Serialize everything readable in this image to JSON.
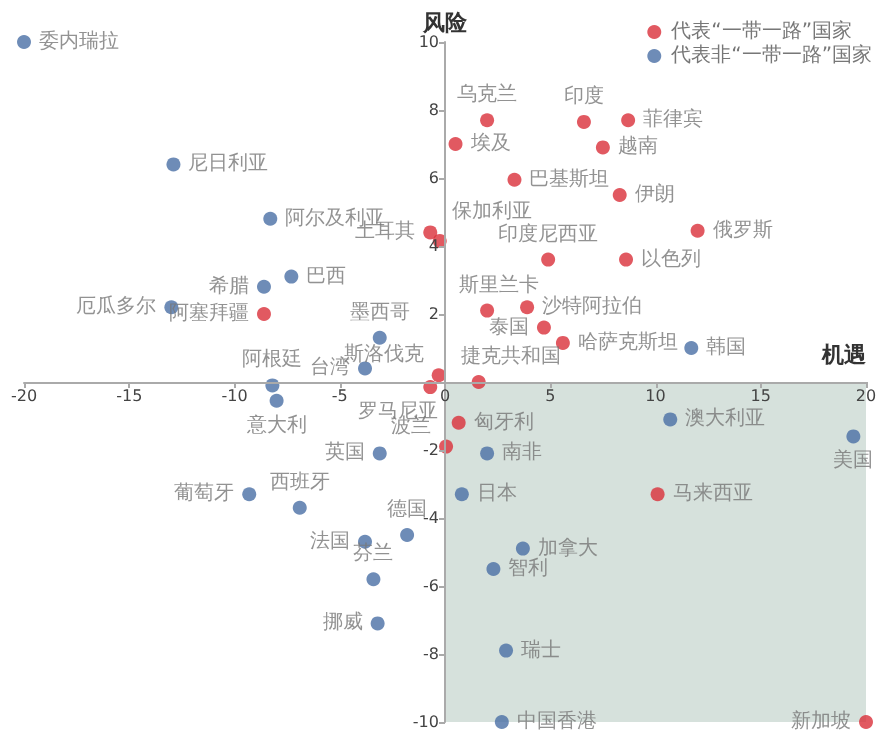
{
  "chart_data": {
    "type": "scatter",
    "xlabel": "机遇",
    "ylabel": "风险",
    "xlim": [
      -20,
      20
    ],
    "ylim": [
      -10,
      10
    ],
    "xticks": [
      -20,
      -15,
      -10,
      -5,
      0,
      5,
      10,
      15,
      20
    ],
    "yticks": [
      -10,
      -8,
      -6,
      -4,
      -2,
      {
        "value": 0,
        "label": null
      },
      2,
      4,
      6,
      8,
      10
    ],
    "grid": false,
    "legend": "top right",
    "marker": "circle",
    "bands": [
      {
        "axis": "x",
        "from": 0,
        "to": 20,
        "color": "#d6e1dc"
      }
    ],
    "series": [
      {
        "name": "代表“一带一路”国家",
        "color": "#d9303a",
        "x": [
          2.0,
          6.6,
          8.7,
          0.5,
          7.5,
          3.3,
          8.3,
          -0.7,
          -0.25,
          12.0,
          4.9,
          8.6,
          2.0,
          3.9,
          4.7,
          5.6,
          -8.6,
          -0.3,
          1.6,
          -0.7,
          0.05,
          0.65,
          10.1,
          20
        ],
        "values": [
          7.7,
          7.65,
          7.7,
          7.0,
          6.9,
          5.95,
          5.5,
          4.4,
          4.15,
          4.45,
          3.6,
          3.6,
          2.1,
          2.2,
          1.6,
          1.15,
          2.0,
          0.2,
          0.0,
          -0.15,
          -1.9,
          -1.2,
          -3.3,
          -10
        ]
      },
      {
        "name": "代表非“一带一路”国家",
        "color": "#4a6fa5",
        "x": [
          -20,
          -12.9,
          -8.3,
          -7.3,
          -8.6,
          -13.0,
          -3.1,
          -3.8,
          -8.2,
          -8.0,
          -3.1,
          -9.3,
          -6.9,
          -1.8,
          -3.8,
          -3.4,
          -3.2,
          11.7,
          10.7,
          19.4,
          2.0,
          0.8,
          3.7,
          2.3,
          2.9,
          2.7
        ],
        "values": [
          10,
          6.4,
          4.8,
          3.1,
          2.8,
          2.2,
          1.3,
          0.4,
          -0.1,
          -0.55,
          -2.1,
          -3.3,
          -3.7,
          -4.5,
          -4.7,
          -5.8,
          -7.1,
          1.0,
          -1.1,
          -1.6,
          -2.1,
          -3.3,
          -4.9,
          -5.5,
          -7.9,
          -10
        ]
      }
    ],
    "annotations": [
      {
        "text": "乌克兰",
        "x": 2.0,
        "y": 7.7
      },
      {
        "text": "印度",
        "x": 6.6,
        "y": 7.65
      },
      {
        "text": "菲律宾",
        "x": 8.7,
        "y": 7.7
      },
      {
        "text": "埃及",
        "x": 0.5,
        "y": 7.0
      },
      {
        "text": "越南",
        "x": 7.5,
        "y": 6.9
      },
      {
        "text": "巴基斯坦",
        "x": 3.3,
        "y": 5.95
      },
      {
        "text": "伊朗",
        "x": 8.3,
        "y": 5.5
      },
      {
        "text": "土耳其",
        "x": -0.7,
        "y": 4.4
      },
      {
        "text": "保加利亚",
        "x": -0.25,
        "y": 4.15
      },
      {
        "text": "俄罗斯",
        "x": 12.0,
        "y": 4.45
      },
      {
        "text": "印度尼西亚",
        "x": 4.9,
        "y": 3.6
      },
      {
        "text": "以色列",
        "x": 8.6,
        "y": 3.6
      },
      {
        "text": "斯里兰卡",
        "x": 2.0,
        "y": 2.1
      },
      {
        "text": "沙特阿拉伯",
        "x": 3.9,
        "y": 2.2
      },
      {
        "text": "泰国",
        "x": 4.7,
        "y": 1.6
      },
      {
        "text": "哈萨克斯坦",
        "x": 5.6,
        "y": 1.15
      },
      {
        "text": "阿塞拜疆",
        "x": -8.6,
        "y": 2.0
      },
      {
        "text": "斯洛伐克",
        "x": -0.3,
        "y": 0.2
      },
      {
        "text": "捷克共和国",
        "x": 1.6,
        "y": 0.0
      },
      {
        "text": "罗马尼亚",
        "x": -0.7,
        "y": -0.15
      },
      {
        "text": "波兰",
        "x": 0.05,
        "y": -1.9
      },
      {
        "text": "匈牙利",
        "x": 0.65,
        "y": -1.2
      },
      {
        "text": "马来西亚",
        "x": 10.1,
        "y": -3.3
      },
      {
        "text": "新加坡",
        "x": 20,
        "y": -10
      },
      {
        "text": "委内瑞拉",
        "x": -20,
        "y": 10
      },
      {
        "text": "尼日利亚",
        "x": -12.9,
        "y": 6.4
      },
      {
        "text": "阿尔及利亚",
        "x": -8.3,
        "y": 4.8
      },
      {
        "text": "巴西",
        "x": -7.3,
        "y": 3.1
      },
      {
        "text": "希腊",
        "x": -8.6,
        "y": 2.8
      },
      {
        "text": "厄瓜多尔",
        "x": -13.0,
        "y": 2.2
      },
      {
        "text": "墨西哥",
        "x": -3.1,
        "y": 1.3
      },
      {
        "text": "台湾",
        "x": -3.8,
        "y": 0.4
      },
      {
        "text": "阿根廷",
        "x": -8.2,
        "y": -0.1
      },
      {
        "text": "意大利",
        "x": -8.0,
        "y": -0.55
      },
      {
        "text": "英国",
        "x": -3.1,
        "y": -2.1
      },
      {
        "text": "葡萄牙",
        "x": -9.3,
        "y": -3.3
      },
      {
        "text": "西班牙",
        "x": -6.9,
        "y": -3.7
      },
      {
        "text": "德国",
        "x": -1.8,
        "y": -4.5
      },
      {
        "text": "法国",
        "x": -3.8,
        "y": -4.7
      },
      {
        "text": "芬兰",
        "x": -3.4,
        "y": -5.8
      },
      {
        "text": "挪威",
        "x": -3.2,
        "y": -7.1
      },
      {
        "text": "韩国",
        "x": 11.7,
        "y": 1.0
      },
      {
        "text": "澳大利亚",
        "x": 10.7,
        "y": -1.1
      },
      {
        "text": "美国",
        "x": 19.4,
        "y": -1.6
      },
      {
        "text": "南非",
        "x": 2.0,
        "y": -2.1
      },
      {
        "text": "日本",
        "x": 0.8,
        "y": -3.3
      },
      {
        "text": "加拿大",
        "x": 3.7,
        "y": -4.9
      },
      {
        "text": "智利",
        "x": 2.3,
        "y": -5.5
      },
      {
        "text": "瑞士",
        "x": 2.9,
        "y": -7.9
      },
      {
        "text": "中国香港",
        "x": 2.7,
        "y": -10
      }
    ]
  }
}
